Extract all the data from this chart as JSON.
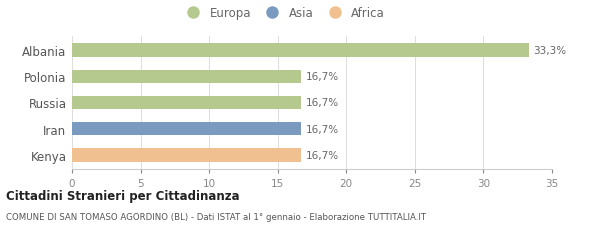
{
  "categories": [
    "Albania",
    "Polonia",
    "Russia",
    "Iran",
    "Kenya"
  ],
  "values": [
    33.3,
    16.7,
    16.7,
    16.7,
    16.7
  ],
  "labels": [
    "33,3%",
    "16,7%",
    "16,7%",
    "16,7%",
    "16,7%"
  ],
  "bar_colors": [
    "#b5c98e",
    "#b5c98e",
    "#b5c98e",
    "#7a9bbf",
    "#f0c090"
  ],
  "legend_items": [
    {
      "label": "Europa",
      "color": "#b5c98e"
    },
    {
      "label": "Asia",
      "color": "#7a9bbf"
    },
    {
      "label": "Africa",
      "color": "#f0c090"
    }
  ],
  "xlim": [
    0,
    35
  ],
  "xticks": [
    0,
    5,
    10,
    15,
    20,
    25,
    30,
    35
  ],
  "title_bold": "Cittadini Stranieri per Cittadinanza",
  "subtitle": "COMUNE DI SAN TOMASO AGORDINO (BL) - Dati ISTAT al 1° gennaio - Elaborazione TUTTITALIA.IT",
  "background_color": "#ffffff",
  "bar_height": 0.52,
  "label_fontsize": 7.5,
  "tick_fontsize": 7.5,
  "ytick_fontsize": 8.5
}
